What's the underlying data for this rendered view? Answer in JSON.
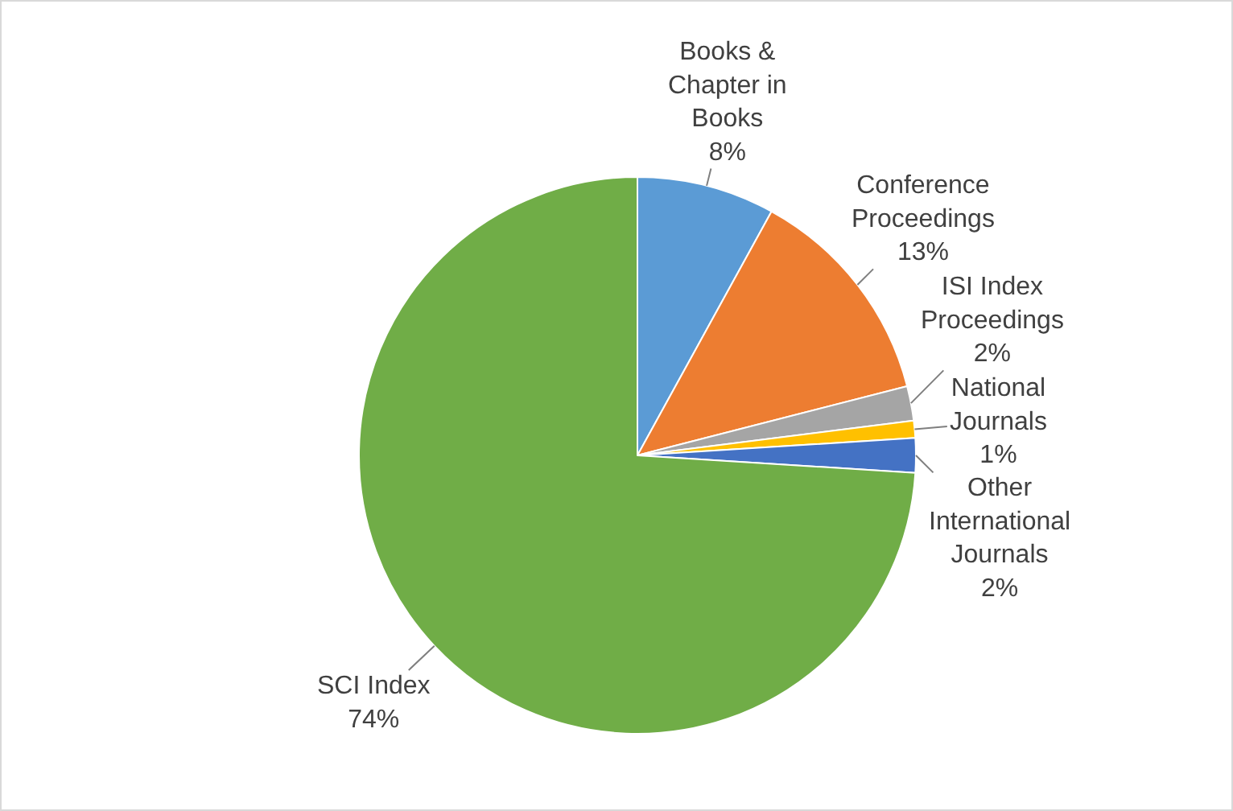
{
  "chart_data": {
    "type": "pie",
    "categories": [
      "Books & Chapter in Books",
      "Conference Proceedings",
      "ISI Index Proceedings",
      "National Journals",
      "Other International Journals",
      "SCI Index"
    ],
    "values": [
      8,
      13,
      2,
      1,
      2,
      74
    ],
    "colors": [
      "#5b9bd5",
      "#ed7d31",
      "#a5a5a5",
      "#ffc000",
      "#4472c4",
      "#70ad47"
    ],
    "value_labels": [
      "8%",
      "13%",
      "2%",
      "1%",
      "2%",
      "74%"
    ],
    "legend": false
  }
}
